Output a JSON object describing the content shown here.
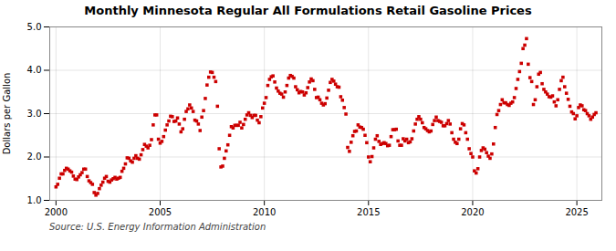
{
  "chart_data": {
    "type": "scatter",
    "title": "Monthly Minnesota Regular All Formulations Retail Gasoline Prices",
    "ylabel": "Dollars per Gallon",
    "source": "Source: U.S. Energy Information Administration",
    "color": "#CC0000",
    "marker": "square",
    "grid": true,
    "xlim": [
      1999.7,
      2026.2
    ],
    "ylim": [
      1.0,
      5.0
    ],
    "xticks": [
      2000,
      2005,
      2010,
      2015,
      2020,
      2025
    ],
    "yticks": [
      {
        "value": 1.0,
        "label": "1.0"
      },
      {
        "value": 2.0,
        "label": "2.0"
      },
      {
        "value": 3.0,
        "label": "3.0"
      },
      {
        "value": 4.0,
        "label": "4.0"
      },
      {
        "value": 5.0,
        "label": "5.0"
      }
    ],
    "x": [
      2000,
      2000.083333,
      2000.166667,
      2000.25,
      2000.333333,
      2000.416667,
      2000.5,
      2000.583333,
      2000.666667,
      2000.75,
      2000.833333,
      2000.916667,
      2001,
      2001.083333,
      2001.166667,
      2001.25,
      2001.333333,
      2001.416667,
      2001.5,
      2001.583333,
      2001.666667,
      2001.75,
      2001.833333,
      2001.916667,
      2002,
      2002.083333,
      2002.166667,
      2002.25,
      2002.333333,
      2002.416667,
      2002.5,
      2002.583333,
      2002.666667,
      2002.75,
      2002.833333,
      2002.916667,
      2003,
      2003.083333,
      2003.166667,
      2003.25,
      2003.333333,
      2003.416667,
      2003.5,
      2003.583333,
      2003.666667,
      2003.75,
      2003.833333,
      2003.916667,
      2004,
      2004.083333,
      2004.166667,
      2004.25,
      2004.333333,
      2004.416667,
      2004.5,
      2004.583333,
      2004.666667,
      2004.75,
      2004.833333,
      2004.916667,
      2005,
      2005.083333,
      2005.166667,
      2005.25,
      2005.333333,
      2005.416667,
      2005.5,
      2005.583333,
      2005.666667,
      2005.75,
      2005.833333,
      2005.916667,
      2006,
      2006.083333,
      2006.166667,
      2006.25,
      2006.333333,
      2006.416667,
      2006.5,
      2006.583333,
      2006.666667,
      2006.75,
      2006.833333,
      2006.916667,
      2007,
      2007.083333,
      2007.166667,
      2007.25,
      2007.333333,
      2007.416667,
      2007.5,
      2007.583333,
      2007.666667,
      2007.75,
      2007.833333,
      2007.916667,
      2008,
      2008.083333,
      2008.166667,
      2008.25,
      2008.333333,
      2008.416667,
      2008.5,
      2008.583333,
      2008.666667,
      2008.75,
      2008.833333,
      2008.916667,
      2009,
      2009.083333,
      2009.166667,
      2009.25,
      2009.333333,
      2009.416667,
      2009.5,
      2009.583333,
      2009.666667,
      2009.75,
      2009.833333,
      2009.916667,
      2010,
      2010.083333,
      2010.166667,
      2010.25,
      2010.333333,
      2010.416667,
      2010.5,
      2010.583333,
      2010.666667,
      2010.75,
      2010.833333,
      2010.916667,
      2011,
      2011.083333,
      2011.166667,
      2011.25,
      2011.333333,
      2011.416667,
      2011.5,
      2011.583333,
      2011.666667,
      2011.75,
      2011.833333,
      2011.916667,
      2012,
      2012.083333,
      2012.166667,
      2012.25,
      2012.333333,
      2012.416667,
      2012.5,
      2012.583333,
      2012.666667,
      2012.75,
      2012.833333,
      2012.916667,
      2013,
      2013.083333,
      2013.166667,
      2013.25,
      2013.333333,
      2013.416667,
      2013.5,
      2013.583333,
      2013.666667,
      2013.75,
      2013.833333,
      2013.916667,
      2014,
      2014.083333,
      2014.166667,
      2014.25,
      2014.333333,
      2014.416667,
      2014.5,
      2014.583333,
      2014.666667,
      2014.75,
      2014.833333,
      2014.916667,
      2015,
      2015.083333,
      2015.166667,
      2015.25,
      2015.333333,
      2015.416667,
      2015.5,
      2015.583333,
      2015.666667,
      2015.75,
      2015.833333,
      2015.916667,
      2016,
      2016.083333,
      2016.166667,
      2016.25,
      2016.333333,
      2016.416667,
      2016.5,
      2016.583333,
      2016.666667,
      2016.75,
      2016.833333,
      2016.916667,
      2017,
      2017.083333,
      2017.166667,
      2017.25,
      2017.333333,
      2017.416667,
      2017.5,
      2017.583333,
      2017.666667,
      2017.75,
      2017.833333,
      2017.916667,
      2018,
      2018.083333,
      2018.166667,
      2018.25,
      2018.333333,
      2018.416667,
      2018.5,
      2018.583333,
      2018.666667,
      2018.75,
      2018.833333,
      2018.916667,
      2019,
      2019.083333,
      2019.166667,
      2019.25,
      2019.333333,
      2019.416667,
      2019.5,
      2019.583333,
      2019.666667,
      2019.75,
      2019.833333,
      2019.916667,
      2020,
      2020.083333,
      2020.166667,
      2020.25,
      2020.333333,
      2020.416667,
      2020.5,
      2020.583333,
      2020.666667,
      2020.75,
      2020.833333,
      2020.916667,
      2021,
      2021.083333,
      2021.166667,
      2021.25,
      2021.333333,
      2021.416667,
      2021.5,
      2021.583333,
      2021.666667,
      2021.75,
      2021.833333,
      2021.916667,
      2022,
      2022.083333,
      2022.166667,
      2022.25,
      2022.333333,
      2022.416667,
      2022.5,
      2022.583333,
      2022.666667,
      2022.75,
      2022.833333,
      2022.916667,
      2023,
      2023.083333,
      2023.166667,
      2023.25,
      2023.333333,
      2023.416667,
      2023.5,
      2023.583333,
      2023.666667,
      2023.75,
      2023.833333,
      2023.916667,
      2024,
      2024.083333,
      2024.166667,
      2024.25,
      2024.333333,
      2024.416667,
      2024.5,
      2024.583333,
      2024.666667,
      2024.75,
      2024.833333,
      2024.916667,
      2025,
      2025.083333,
      2025.166667,
      2025.25,
      2025.333333,
      2025.416667,
      2025.5,
      2025.583333,
      2025.666667,
      2025.75,
      2025.833333,
      2025.916667
    ],
    "values": [
      1.31,
      1.37,
      1.51,
      1.61,
      1.61,
      1.69,
      1.74,
      1.72,
      1.68,
      1.65,
      1.56,
      1.49,
      1.48,
      1.54,
      1.59,
      1.64,
      1.72,
      1.72,
      1.55,
      1.45,
      1.41,
      1.37,
      1.18,
      1.12,
      1.16,
      1.27,
      1.35,
      1.42,
      1.51,
      1.55,
      1.44,
      1.42,
      1.47,
      1.5,
      1.53,
      1.49,
      1.51,
      1.53,
      1.67,
      1.74,
      1.84,
      1.98,
      1.97,
      1.91,
      1.88,
      1.97,
      2.03,
      1.97,
      1.95,
      2.05,
      2.17,
      2.29,
      2.25,
      2.21,
      2.27,
      2.4,
      2.74,
      2.97,
      2.97,
      2.41,
      2.32,
      2.36,
      2.47,
      2.62,
      2.74,
      2.83,
      2.94,
      2.93,
      2.82,
      2.83,
      2.9,
      2.76,
      2.58,
      2.65,
      2.87,
      3.05,
      3.11,
      3.2,
      3.13,
      3.05,
      2.85,
      2.83,
      2.76,
      2.61,
      2.92,
      3.07,
      3.35,
      3.66,
      3.84,
      3.96,
      3.95,
      3.84,
      3.74,
      3.17,
      2.19,
      1.77,
      1.79,
      1.97,
      2.14,
      2.28,
      2.5,
      2.7,
      2.67,
      2.73,
      2.73,
      2.73,
      2.8,
      2.67,
      2.75,
      2.87,
      2.97,
      3.02,
      2.96,
      2.91,
      2.96,
      2.96,
      2.85,
      2.79,
      2.93,
      3.13,
      3.24,
      3.37,
      3.65,
      3.79,
      3.85,
      3.87,
      3.73,
      3.59,
      3.52,
      3.47,
      3.45,
      3.38,
      3.5,
      3.65,
      3.82,
      3.88,
      3.86,
      3.82,
      3.62,
      3.55,
      3.48,
      3.51,
      3.5,
      3.43,
      3.48,
      3.6,
      3.73,
      3.8,
      3.76,
      3.56,
      3.37,
      3.38,
      3.32,
      3.24,
      3.2,
      3.23,
      3.36,
      3.54,
      3.72,
      3.79,
      3.75,
      3.68,
      3.62,
      3.61,
      3.39,
      3.31,
      3.14,
      2.99,
      2.22,
      2.13,
      2.34,
      2.49,
      2.59,
      2.6,
      2.74,
      2.69,
      2.68,
      2.64,
      2.5,
      2.33,
      2.0,
      1.89,
      2.01,
      2.21,
      2.41,
      2.49,
      2.36,
      2.29,
      2.31,
      2.33,
      2.31,
      2.26,
      2.27,
      2.47,
      2.63,
      2.63,
      2.64,
      2.37,
      2.27,
      2.27,
      2.42,
      2.37,
      2.41,
      2.33,
      2.35,
      2.42,
      2.6,
      2.76,
      2.87,
      2.93,
      2.87,
      2.79,
      2.68,
      2.65,
      2.61,
      2.58,
      2.6,
      2.75,
      2.84,
      2.92,
      2.84,
      2.82,
      2.8,
      2.72,
      2.72,
      2.77,
      2.84,
      2.76,
      2.56,
      2.41,
      2.34,
      2.31,
      2.41,
      2.65,
      2.77,
      2.74,
      2.56,
      2.41,
      2.19,
      2.08,
      2.0,
      1.68,
      1.63,
      1.73,
      2.0,
      2.15,
      2.21,
      2.18,
      2.1,
      2.02,
      1.97,
      2.07,
      2.3,
      2.68,
      2.98,
      3.07,
      3.21,
      3.32,
      3.25,
      3.25,
      3.21,
      3.19,
      3.24,
      3.27,
      3.37,
      3.58,
      3.79,
      3.97,
      4.16,
      4.5,
      4.58,
      4.73,
      4.14,
      3.83,
      3.74,
      3.21,
      3.32,
      3.62,
      3.91,
      3.95,
      3.69,
      3.56,
      3.5,
      3.45,
      3.39,
      3.38,
      3.41,
      3.27,
      3.18,
      3.32,
      3.56,
      3.76,
      3.84,
      3.62,
      3.47,
      3.33,
      3.17,
      3.04,
      3.0,
      2.88,
      2.95,
      3.14,
      3.2,
      3.18,
      3.09,
      3.07,
      3.0,
      2.95,
      2.87,
      2.92,
      2.98,
      3.02
    ]
  }
}
